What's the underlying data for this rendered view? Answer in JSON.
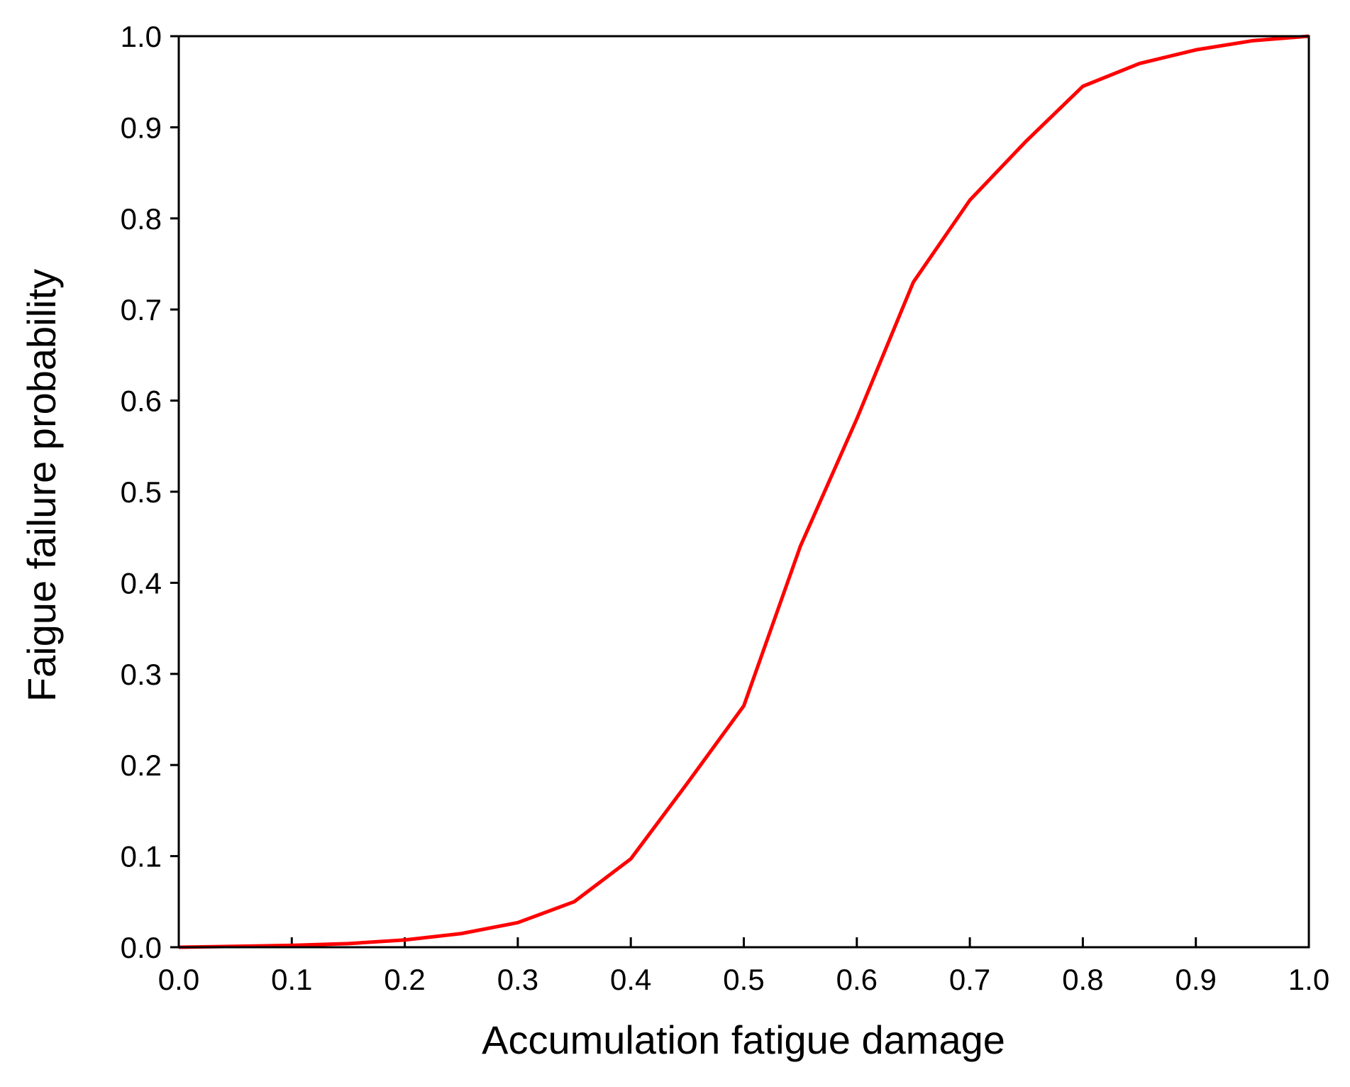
{
  "chart_data": {
    "type": "line",
    "x_label": "Accumulation fatigue damage",
    "y_label": "Faigue failure probability",
    "x": [
      0,
      0.05,
      0.1,
      0.15,
      0.2,
      0.25,
      0.3,
      0.35,
      0.4,
      0.45,
      0.5,
      0.55,
      0.6,
      0.65,
      0.7,
      0.75,
      0.8,
      0.85,
      0.9,
      0.95,
      1.0
    ],
    "series": [
      {
        "color": "#ff0000",
        "values": [
          0,
          0.001,
          0.002,
          0.004,
          0.008,
          0.015,
          0.027,
          0.05,
          0.097,
          0.18,
          0.265,
          0.44,
          0.58,
          0.73,
          0.82,
          0.885,
          0.945,
          0.97,
          0.985,
          0.995,
          1.0
        ]
      }
    ],
    "xlim": [
      0,
      1
    ],
    "ylim": [
      0,
      1
    ],
    "xticks": [
      {
        "value": 0,
        "label": "0.0"
      },
      0.1,
      0.2,
      0.3,
      0.4,
      0.5,
      0.6,
      0.7,
      0.8,
      0.9,
      {
        "value": 1,
        "label": "1.0"
      }
    ],
    "yticks": [
      {
        "value": 0,
        "label": "0.0"
      },
      0.1,
      0.2,
      0.3,
      0.4,
      0.5,
      0.6,
      0.7,
      0.8,
      0.9,
      {
        "value": 1,
        "label": "1.0"
      }
    ],
    "grid": false
  }
}
